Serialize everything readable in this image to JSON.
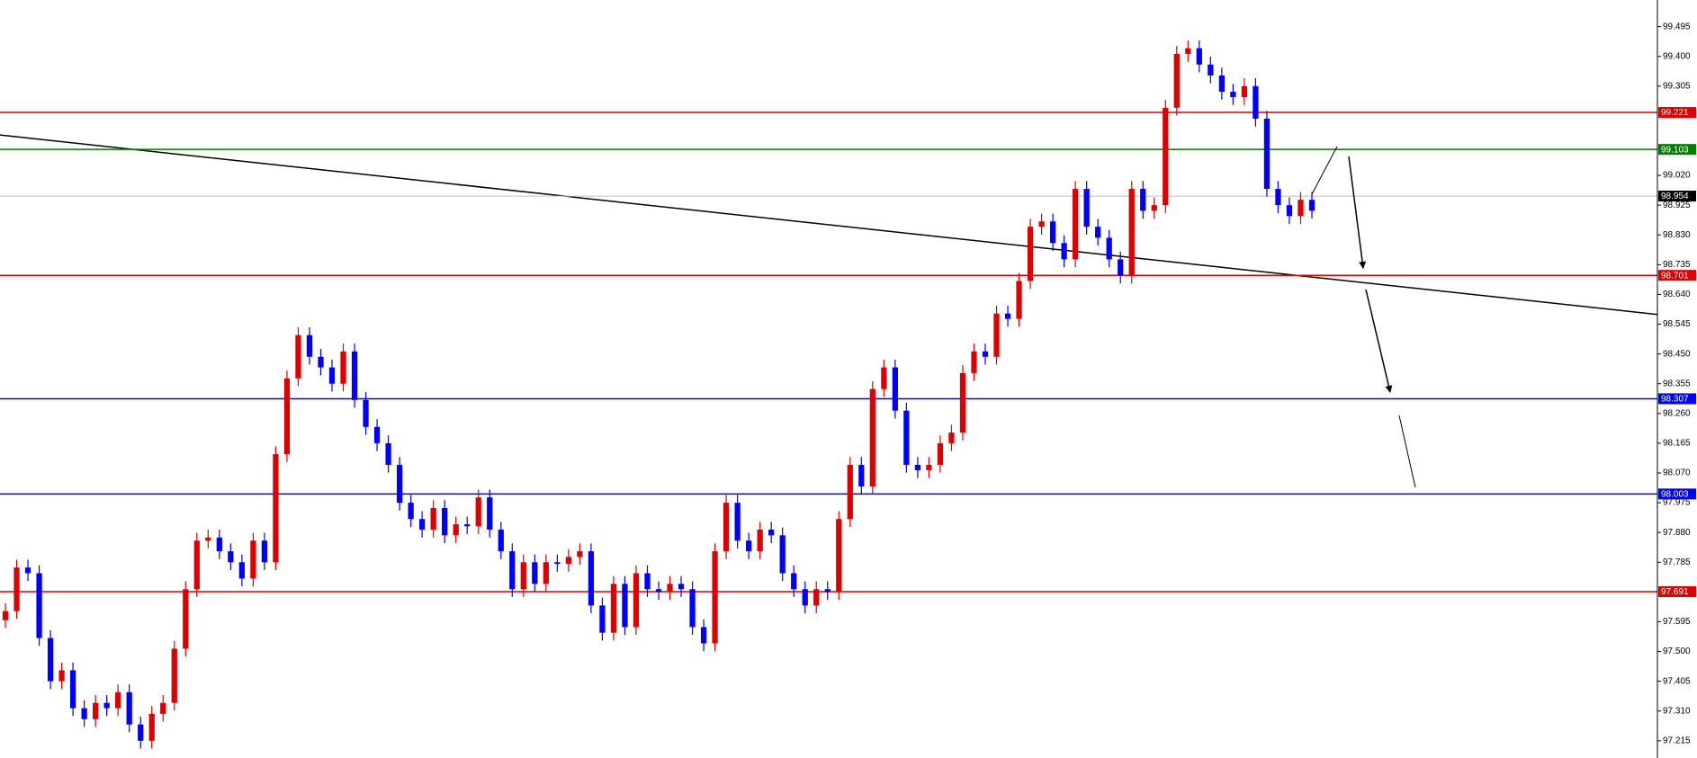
{
  "chart_data": {
    "type": "candlestick",
    "up_color": "#e00000",
    "down_color": "#0000ff",
    "ylim": [
      97.16,
      99.58
    ],
    "yticks": [
      {
        "value": 99.495,
        "label": "99.495"
      },
      {
        "value": 99.4,
        "label": "99.400"
      },
      {
        "value": 99.305,
        "label": "99.305"
      },
      {
        "value": 99.02,
        "label": "99.020"
      },
      {
        "value": 98.925,
        "label": "98.925"
      },
      {
        "value": 98.83,
        "label": "98.830"
      },
      {
        "value": 98.735,
        "label": "98.735"
      },
      {
        "value": 98.64,
        "label": "98.640"
      },
      {
        "value": 98.545,
        "label": "98.545"
      },
      {
        "value": 98.45,
        "label": "98.450"
      },
      {
        "value": 98.355,
        "label": "98.355"
      },
      {
        "value": 98.26,
        "label": "98.260"
      },
      {
        "value": 98.165,
        "label": "98.165"
      },
      {
        "value": 98.07,
        "label": "98.070"
      },
      {
        "value": 97.975,
        "label": "97.975"
      },
      {
        "value": 97.88,
        "label": "97.880"
      },
      {
        "value": 97.785,
        "label": "97.785"
      },
      {
        "value": 97.595,
        "label": "97.595"
      },
      {
        "value": 97.5,
        "label": "97.500"
      },
      {
        "value": 97.405,
        "label": "97.405"
      },
      {
        "value": 97.31,
        "label": "97.310"
      },
      {
        "value": 97.215,
        "label": "97.215"
      }
    ],
    "levels": [
      {
        "value": 99.221,
        "label": "99.221",
        "color": "#e00000"
      },
      {
        "value": 99.103,
        "label": "99.103",
        "color": "#008000"
      },
      {
        "value": 98.954,
        "label": "98.954",
        "color": "#c0c0c0",
        "label_color": "#000000"
      },
      {
        "value": 98.701,
        "label": "98.701",
        "color": "#e00000"
      },
      {
        "value": 98.307,
        "label": "98.307",
        "color": "#0000ff"
      },
      {
        "value": 98.003,
        "label": "98.003",
        "color": "#0000ff"
      },
      {
        "value": 97.691,
        "label": "97.691",
        "color": "#e00000"
      }
    ],
    "trendline": {
      "start": 99.149,
      "end": 98.576,
      "color": "#000000"
    },
    "ohlc": [
      [
        97.6,
        97.654,
        97.575,
        97.629
      ],
      [
        97.629,
        97.793,
        97.604,
        97.768
      ],
      [
        97.768,
        97.793,
        97.725,
        97.75
      ],
      [
        97.75,
        97.775,
        97.518,
        97.543
      ],
      [
        97.543,
        97.568,
        97.38,
        97.405
      ],
      [
        97.405,
        97.465,
        97.38,
        97.44
      ],
      [
        97.44,
        97.465,
        97.294,
        97.319
      ],
      [
        97.319,
        97.344,
        97.259,
        97.284
      ],
      [
        97.284,
        97.361,
        97.259,
        97.336
      ],
      [
        97.336,
        97.361,
        97.294,
        97.319
      ],
      [
        97.319,
        97.395,
        97.294,
        97.37
      ],
      [
        97.37,
        97.395,
        97.242,
        97.267
      ],
      [
        97.267,
        97.292,
        97.19,
        97.215
      ],
      [
        97.215,
        97.326,
        97.19,
        97.301
      ],
      [
        97.301,
        97.361,
        97.276,
        97.336
      ],
      [
        97.336,
        97.534,
        97.311,
        97.509
      ],
      [
        97.509,
        97.724,
        97.484,
        97.699
      ],
      [
        97.699,
        97.879,
        97.674,
        97.854
      ],
      [
        97.854,
        97.889,
        97.829,
        97.864
      ],
      [
        97.864,
        97.889,
        97.795,
        97.82
      ],
      [
        97.82,
        97.845,
        97.76,
        97.785
      ],
      [
        97.785,
        97.81,
        97.708,
        97.733
      ],
      [
        97.733,
        97.879,
        97.708,
        97.854
      ],
      [
        97.854,
        97.879,
        97.76,
        97.785
      ],
      [
        97.785,
        98.155,
        97.76,
        98.13
      ],
      [
        98.13,
        98.397,
        98.105,
        98.372
      ],
      [
        98.372,
        98.535,
        98.347,
        98.51
      ],
      [
        98.51,
        98.535,
        98.416,
        98.441
      ],
      [
        98.441,
        98.466,
        98.382,
        98.407
      ],
      [
        98.407,
        98.432,
        98.33,
        98.355
      ],
      [
        98.355,
        98.483,
        98.33,
        98.458
      ],
      [
        98.458,
        98.483,
        98.278,
        98.303
      ],
      [
        98.303,
        98.328,
        98.192,
        98.217
      ],
      [
        98.217,
        98.242,
        98.14,
        98.165
      ],
      [
        98.165,
        98.19,
        98.071,
        98.096
      ],
      [
        98.096,
        98.121,
        97.95,
        97.975
      ],
      [
        97.975,
        98.0,
        97.898,
        97.923
      ],
      [
        97.923,
        97.948,
        97.864,
        97.889
      ],
      [
        97.889,
        97.983,
        97.864,
        97.958
      ],
      [
        97.958,
        97.983,
        97.846,
        97.871
      ],
      [
        97.871,
        97.931,
        97.846,
        97.906
      ],
      [
        97.906,
        97.931,
        97.875,
        97.9
      ],
      [
        97.9,
        98.017,
        97.875,
        97.992
      ],
      [
        97.992,
        98.017,
        97.864,
        97.889
      ],
      [
        97.889,
        97.914,
        97.795,
        97.82
      ],
      [
        97.82,
        97.845,
        97.674,
        97.699
      ],
      [
        97.699,
        97.81,
        97.674,
        97.785
      ],
      [
        97.785,
        97.81,
        97.691,
        97.716
      ],
      [
        97.716,
        97.81,
        97.691,
        97.785
      ],
      [
        97.785,
        97.81,
        97.755,
        97.78
      ],
      [
        97.78,
        97.827,
        97.755,
        97.802
      ],
      [
        97.802,
        97.845,
        97.777,
        97.82
      ],
      [
        97.82,
        97.845,
        97.622,
        97.647
      ],
      [
        97.647,
        97.672,
        97.535,
        97.56
      ],
      [
        97.56,
        97.741,
        97.535,
        97.716
      ],
      [
        97.716,
        97.741,
        97.553,
        97.578
      ],
      [
        97.578,
        97.775,
        97.553,
        97.75
      ],
      [
        97.75,
        97.775,
        97.674,
        97.699
      ],
      [
        97.699,
        97.724,
        97.665,
        97.69
      ],
      [
        97.69,
        97.741,
        97.665,
        97.716
      ],
      [
        97.716,
        97.741,
        97.674,
        97.699
      ],
      [
        97.699,
        97.724,
        97.553,
        97.578
      ],
      [
        97.578,
        97.603,
        97.501,
        97.526
      ],
      [
        97.526,
        97.845,
        97.501,
        97.82
      ],
      [
        97.82,
        98.0,
        97.795,
        97.975
      ],
      [
        97.975,
        98.0,
        97.829,
        97.854
      ],
      [
        97.854,
        97.879,
        97.795,
        97.82
      ],
      [
        97.82,
        97.914,
        97.795,
        97.889
      ],
      [
        97.889,
        97.914,
        97.846,
        97.871
      ],
      [
        97.871,
        97.896,
        97.725,
        97.75
      ],
      [
        97.75,
        97.775,
        97.674,
        97.699
      ],
      [
        97.699,
        97.724,
        97.622,
        97.647
      ],
      [
        97.647,
        97.724,
        97.622,
        97.699
      ],
      [
        97.699,
        97.724,
        97.665,
        97.69
      ],
      [
        97.69,
        97.948,
        97.665,
        97.923
      ],
      [
        97.923,
        98.121,
        97.898,
        98.096
      ],
      [
        98.096,
        98.121,
        98.002,
        98.027
      ],
      [
        98.027,
        98.363,
        98.002,
        98.338
      ],
      [
        98.338,
        98.432,
        98.313,
        98.407
      ],
      [
        98.407,
        98.432,
        98.244,
        98.269
      ],
      [
        98.269,
        98.294,
        98.071,
        98.096
      ],
      [
        98.096,
        98.121,
        98.054,
        98.079
      ],
      [
        98.079,
        98.121,
        98.054,
        98.096
      ],
      [
        98.096,
        98.19,
        98.071,
        98.165
      ],
      [
        98.165,
        98.224,
        98.14,
        98.199
      ],
      [
        98.199,
        98.414,
        98.174,
        98.389
      ],
      [
        98.389,
        98.483,
        98.364,
        98.458
      ],
      [
        98.458,
        98.483,
        98.416,
        98.441
      ],
      [
        98.441,
        98.604,
        98.416,
        98.579
      ],
      [
        98.579,
        98.604,
        98.537,
        98.562
      ],
      [
        98.562,
        98.708,
        98.537,
        98.683
      ],
      [
        98.683,
        98.881,
        98.658,
        98.856
      ],
      [
        98.856,
        98.898,
        98.831,
        98.873
      ],
      [
        98.873,
        98.898,
        98.779,
        98.804
      ],
      [
        98.804,
        98.829,
        98.727,
        98.752
      ],
      [
        98.752,
        99.002,
        98.727,
        98.977
      ],
      [
        98.977,
        99.002,
        98.831,
        98.856
      ],
      [
        98.856,
        98.881,
        98.796,
        98.821
      ],
      [
        98.821,
        98.846,
        98.727,
        98.752
      ],
      [
        98.752,
        98.777,
        98.675,
        98.7
      ],
      [
        98.7,
        99.002,
        98.675,
        98.977
      ],
      [
        98.977,
        99.002,
        98.882,
        98.907
      ],
      [
        98.907,
        98.95,
        98.882,
        98.925
      ],
      [
        98.925,
        99.261,
        98.9,
        99.236
      ],
      [
        99.236,
        99.433,
        99.211,
        99.408
      ],
      [
        99.408,
        99.451,
        99.383,
        99.426
      ],
      [
        99.426,
        99.451,
        99.349,
        99.374
      ],
      [
        99.374,
        99.399,
        99.314,
        99.339
      ],
      [
        99.339,
        99.364,
        99.262,
        99.287
      ],
      [
        99.287,
        99.312,
        99.245,
        99.27
      ],
      [
        99.27,
        99.33,
        99.245,
        99.305
      ],
      [
        99.305,
        99.33,
        99.176,
        99.201
      ],
      [
        99.201,
        99.226,
        98.952,
        98.977
      ],
      [
        98.977,
        99.002,
        98.9,
        98.925
      ],
      [
        98.925,
        98.95,
        98.865,
        98.89
      ],
      [
        98.89,
        98.967,
        98.865,
        98.942
      ],
      [
        98.942,
        98.967,
        98.882,
        98.907
      ]
    ]
  }
}
